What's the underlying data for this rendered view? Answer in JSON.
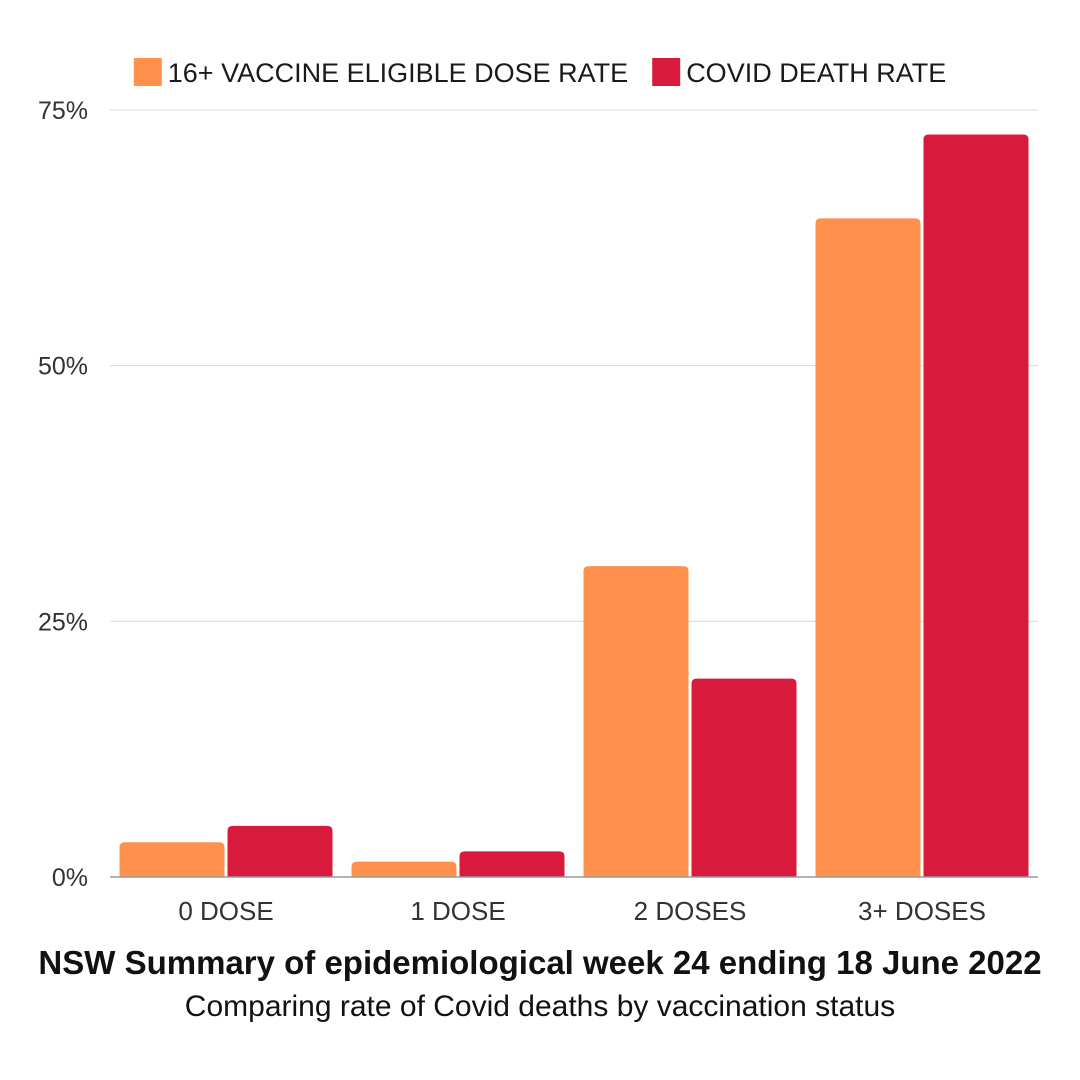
{
  "chart_data": {
    "type": "bar",
    "title": "NSW Summary of epidemiological week 24 ending 18 June 2022",
    "subtitle": "Comparing rate of Covid deaths by vaccination status",
    "categories": [
      "0 DOSE",
      "1 DOSE",
      "2 DOSES",
      "3+ DOSES"
    ],
    "series": [
      {
        "name": "16+ VACCINE ELIGIBLE DOSE RATE",
        "color": "#FF914D",
        "values": [
          3.4,
          1.5,
          30.4,
          64.4
        ]
      },
      {
        "name": "COVID DEATH RATE",
        "color": "#D81B3C",
        "values": [
          5.0,
          2.5,
          19.4,
          72.6
        ]
      }
    ],
    "yticks": [
      {
        "value": 0,
        "label": "0%"
      },
      {
        "value": 25,
        "label": "25%"
      },
      {
        "value": 50,
        "label": "50%"
      },
      {
        "value": 75,
        "label": "75%"
      }
    ],
    "ylim": [
      0,
      75
    ],
    "grid": true,
    "legend_position": "top-center",
    "xlabel": "",
    "ylabel": ""
  }
}
